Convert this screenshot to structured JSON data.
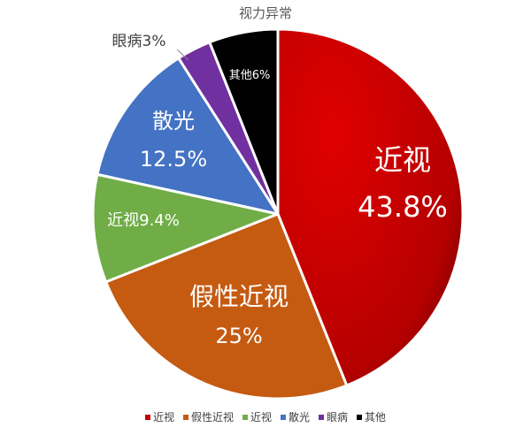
{
  "chart_data": {
    "type": "pie",
    "title": "视力异常",
    "slices": [
      {
        "name": "近视",
        "value": 43.8,
        "label_main": "近视",
        "label_pct": "43.8%",
        "color": "#c00000"
      },
      {
        "name": "假性近视",
        "value": 25,
        "label_main": "假性近视",
        "label_pct": "25%",
        "color": "#c55a11"
      },
      {
        "name": "近视",
        "value": 9.4,
        "label_main": "近视9.4%",
        "label_pct": "",
        "color": "#70ad47"
      },
      {
        "name": "散光",
        "value": 12.5,
        "label_main": "散光",
        "label_pct": "12.5%",
        "color": "#4472c4"
      },
      {
        "name": "眼病",
        "value": 3,
        "label_main": "眼病3%",
        "label_pct": "",
        "color": "#7030a0"
      },
      {
        "name": "其他",
        "value": 6,
        "label_main": "其他6%",
        "label_pct": "",
        "color": "#000000"
      }
    ],
    "legend": [
      "近视",
      "假性近视",
      "近视",
      "散光",
      "眼病",
      "其他"
    ],
    "legend_position": "bottom"
  }
}
